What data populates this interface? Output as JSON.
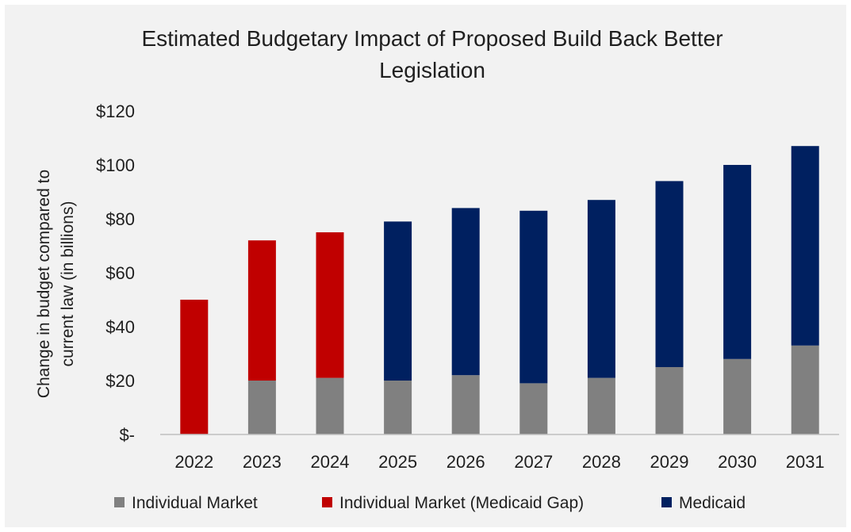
{
  "chart_data": {
    "type": "bar",
    "stacked": true,
    "title": "Estimated Budgetary Impact of Proposed Build Back Better Legislation",
    "title_lines": [
      "Estimated Budgetary Impact of Proposed Build Back Better",
      "Legislation"
    ],
    "ylabel": "Change in budget compared to current law (in billions)",
    "ylabel_lines": [
      "Change in budget compared to",
      "current law (in billions)"
    ],
    "xlabel": "",
    "ylim": [
      0,
      120
    ],
    "y_ticks": [
      0,
      20,
      40,
      60,
      80,
      100,
      120
    ],
    "y_tick_labels": [
      "$-",
      "$20",
      "$40",
      "$60",
      "$80",
      "$100",
      "$120"
    ],
    "grid": false,
    "legend_position": "bottom",
    "categories": [
      "2022",
      "2023",
      "2024",
      "2025",
      "2026",
      "2027",
      "2028",
      "2029",
      "2030",
      "2031"
    ],
    "series": [
      {
        "name": "Individual Market",
        "color": "#808080",
        "values": [
          0,
          20,
          21,
          20,
          22,
          19,
          21,
          25,
          28,
          33
        ]
      },
      {
        "name": "Individual Market (Medicaid Gap)",
        "color": "#c00000",
        "values": [
          50,
          52,
          54,
          0,
          0,
          0,
          0,
          0,
          0,
          0
        ]
      },
      {
        "name": "Medicaid",
        "color": "#002060",
        "values": [
          0,
          0,
          0,
          59,
          62,
          64,
          66,
          69,
          72,
          74
        ]
      }
    ]
  },
  "colors": {
    "background": "#f2f2f2",
    "text": "#1f1f1f",
    "axis": "#bfbfbf"
  }
}
